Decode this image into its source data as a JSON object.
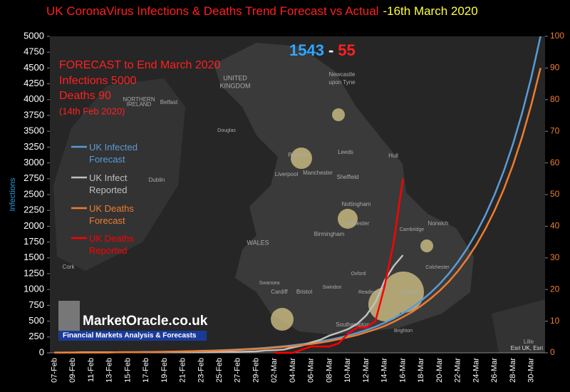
{
  "chart_data": {
    "type": "line",
    "title": "UK CoronaVirus Infections & Deaths Trend Forecast vs Actual",
    "subtitle": "-16th March 2020",
    "ylabel": "Infections",
    "categories": [
      "07-Feb",
      null,
      "09-Feb",
      null,
      "11-Feb",
      null,
      "13-Feb",
      null,
      "15-Feb",
      null,
      "17-Feb",
      null,
      "19-Feb",
      null,
      "21-Feb",
      null,
      "23-Feb",
      null,
      "25-Feb",
      null,
      "27-Feb",
      null,
      "29-Feb",
      null,
      "02-Mar",
      null,
      "04-Mar",
      null,
      "06-Mar",
      null,
      "08-Mar",
      null,
      "10-Mar",
      null,
      "12-Mar",
      null,
      "14-Mar",
      null,
      "16-Mar",
      null,
      "18-Mar",
      null,
      "20-Mar",
      null,
      "22-Mar",
      null,
      "24-Mar",
      null,
      "26-Mar",
      null,
      "28-Mar",
      null,
      "30-Mar",
      null
    ],
    "series": [
      {
        "name": "UK Infected Forecast",
        "color": "#5b9bd5",
        "axis": "y",
        "values": [
          3,
          4,
          4,
          5,
          6,
          6,
          7,
          9,
          10,
          11,
          13,
          15,
          17,
          20,
          23,
          26,
          30,
          34,
          39,
          45,
          52,
          59,
          68,
          78,
          90,
          103,
          118,
          136,
          156,
          179,
          206,
          237,
          272,
          313,
          359,
          412,
          474,
          544,
          625,
          718,
          825,
          947,
          1088,
          1250,
          1436,
          1649,
          1895,
          2176,
          2500,
          2872,
          3299,
          3789,
          4353,
          5000
        ]
      },
      {
        "name": "UK Infect Reported",
        "color": "#bfbfbf",
        "axis": "y",
        "values": [
          3,
          3,
          3,
          8,
          9,
          9,
          9,
          9,
          9,
          9,
          9,
          9,
          9,
          9,
          9,
          9,
          9,
          9,
          13,
          13,
          15,
          20,
          23,
          36,
          40,
          51,
          85,
          115,
          163,
          206,
          273,
          321,
          373,
          456,
          590,
          798,
          1140,
          1372,
          1543,
          null,
          null,
          null,
          null,
          null,
          null,
          null,
          null,
          null,
          null,
          null,
          null,
          null,
          null,
          null
        ]
      },
      {
        "name": "UK Deaths Forecast",
        "color": "#ed7d31",
        "axis": "y2",
        "values": [
          0.1,
          0.1,
          0.1,
          0.1,
          0.1,
          0.1,
          0.1,
          0.2,
          0.2,
          0.2,
          0.2,
          0.3,
          0.3,
          0.4,
          0.4,
          0.5,
          0.5,
          0.6,
          0.7,
          0.8,
          0.9,
          1.1,
          1.2,
          1.4,
          1.6,
          1.9,
          2.1,
          2.4,
          2.8,
          3.2,
          3.7,
          4.3,
          4.9,
          5.6,
          6.5,
          7.4,
          8.5,
          9.8,
          11.3,
          12.9,
          14.9,
          17.1,
          19.6,
          22.5,
          25.8,
          29.7,
          34.1,
          39.2,
          45,
          51.7,
          59.4,
          68.2,
          78.4,
          90
        ]
      },
      {
        "name": "UK Deaths Reported",
        "color": "#ff0000",
        "axis": "y2",
        "values": [
          null,
          null,
          null,
          null,
          null,
          null,
          null,
          null,
          null,
          null,
          null,
          null,
          null,
          null,
          null,
          null,
          null,
          null,
          null,
          null,
          null,
          null,
          null,
          null,
          0,
          0,
          0,
          1,
          2,
          2,
          2,
          3,
          6,
          8,
          8,
          10,
          21,
          35,
          55,
          null,
          null,
          null,
          null,
          null,
          null,
          null,
          null,
          null,
          null,
          null,
          null,
          null,
          null,
          null
        ]
      }
    ],
    "ylim": [
      0,
      5000
    ],
    "yticks": [
      0,
      250,
      500,
      750,
      1000,
      1250,
      1500,
      1750,
      2000,
      2250,
      2500,
      2750,
      3000,
      3250,
      3500,
      3750,
      4000,
      4250,
      4500,
      4750,
      5000
    ],
    "y2lim": [
      0,
      100
    ],
    "y2ticks": [
      0,
      10,
      20,
      30,
      40,
      50,
      60,
      70,
      80,
      90,
      100
    ],
    "grid": false,
    "legend": "left",
    "annotations": {
      "infected_count": "1543",
      "separator": "-",
      "deaths_count": "55",
      "forecast_lines": [
        "FORECAST to End March 2020",
        "Infections  5000",
        "Deaths 90",
        "(14th Feb 2020)"
      ],
      "logo": "MarketOracle.co.uk",
      "logo_tagline": "Financial Markets Analysis & Forecasts",
      "attribution": "Esri UK, Esri"
    },
    "map_labels": [
      "UNITED",
      "KINGDOM",
      "NORTHERN",
      "IRELAND",
      "Belfast",
      "Newcastle",
      "upon Tyne",
      "Douglas",
      "Preston",
      "Leeds",
      "Hull",
      "Liverpool",
      "Manchester",
      "Sheffield",
      "Dublin",
      "Nottingham",
      "Leicester",
      "Birmingham",
      "Norwich",
      "WALES",
      "Cambridge",
      "Cork",
      "Swansea",
      "Cardiff",
      "Bristol",
      "Swindon",
      "Oxford",
      "Reading",
      "London",
      "Southampton",
      "Brighton",
      "Colchester",
      "Lille"
    ]
  }
}
